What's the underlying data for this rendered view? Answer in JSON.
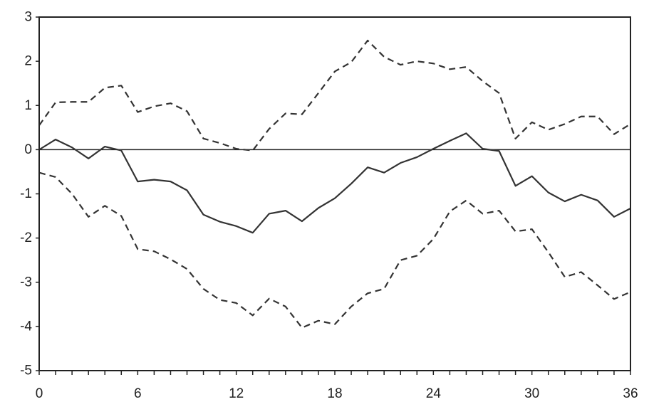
{
  "chart_data": {
    "type": "line",
    "title": "",
    "xlabel": "",
    "ylabel": "",
    "xlim": [
      0,
      36
    ],
    "ylim": [
      -5,
      3
    ],
    "x_ticks": [
      0,
      6,
      12,
      18,
      24,
      30,
      36
    ],
    "x_tick_labels": [
      "0",
      "6",
      "12",
      "18",
      "24",
      "30",
      "36"
    ],
    "y_ticks": [
      3,
      2,
      1,
      0,
      -1,
      -2,
      -3,
      -4,
      -5
    ],
    "y_tick_labels": [
      "3",
      "2",
      "1",
      "0",
      "-1",
      "-2",
      "-3",
      "-4",
      "-5"
    ],
    "zero_line": true,
    "grid": false,
    "x": [
      0,
      1,
      2,
      3,
      4,
      5,
      6,
      7,
      8,
      9,
      10,
      11,
      12,
      13,
      14,
      15,
      16,
      17,
      18,
      19,
      20,
      21,
      22,
      23,
      24,
      25,
      26,
      27,
      28,
      29,
      30,
      31,
      32,
      33,
      34,
      35,
      36
    ],
    "series": [
      {
        "style": "solid",
        "color": "#333333",
        "values": [
          0.0,
          0.23,
          0.05,
          -0.2,
          0.07,
          -0.02,
          -0.72,
          -0.68,
          -0.72,
          -0.92,
          -1.47,
          -1.63,
          -1.73,
          -1.88,
          -1.45,
          -1.38,
          -1.62,
          -1.32,
          -1.1,
          -0.77,
          -0.4,
          -0.52,
          -0.3,
          -0.17,
          0.02,
          0.2,
          0.37,
          0.02,
          -0.03,
          -0.82,
          -0.6,
          -0.97,
          -1.17,
          -1.02,
          -1.15,
          -1.52,
          -1.33
        ]
      },
      {
        "style": "dashed",
        "color": "#333333",
        "values": [
          0.55,
          1.07,
          1.08,
          1.08,
          1.4,
          1.45,
          0.85,
          0.98,
          1.05,
          0.87,
          0.25,
          0.15,
          0.02,
          -0.02,
          0.47,
          0.82,
          0.8,
          1.28,
          1.77,
          1.98,
          2.47,
          2.1,
          1.92,
          2.0,
          1.95,
          1.82,
          1.87,
          1.55,
          1.28,
          0.25,
          0.62,
          0.45,
          0.58,
          0.75,
          0.75,
          0.35,
          0.58
        ]
      },
      {
        "style": "dashed",
        "color": "#333333",
        "values": [
          -0.52,
          -0.62,
          -1.0,
          -1.52,
          -1.27,
          -1.5,
          -2.25,
          -2.3,
          -2.48,
          -2.7,
          -3.15,
          -3.4,
          -3.47,
          -3.75,
          -3.37,
          -3.55,
          -4.03,
          -3.87,
          -3.95,
          -3.55,
          -3.25,
          -3.15,
          -2.5,
          -2.4,
          -2.02,
          -1.4,
          -1.15,
          -1.45,
          -1.38,
          -1.85,
          -1.8,
          -2.32,
          -2.88,
          -2.77,
          -3.07,
          -3.38,
          -3.22
        ]
      }
    ]
  }
}
